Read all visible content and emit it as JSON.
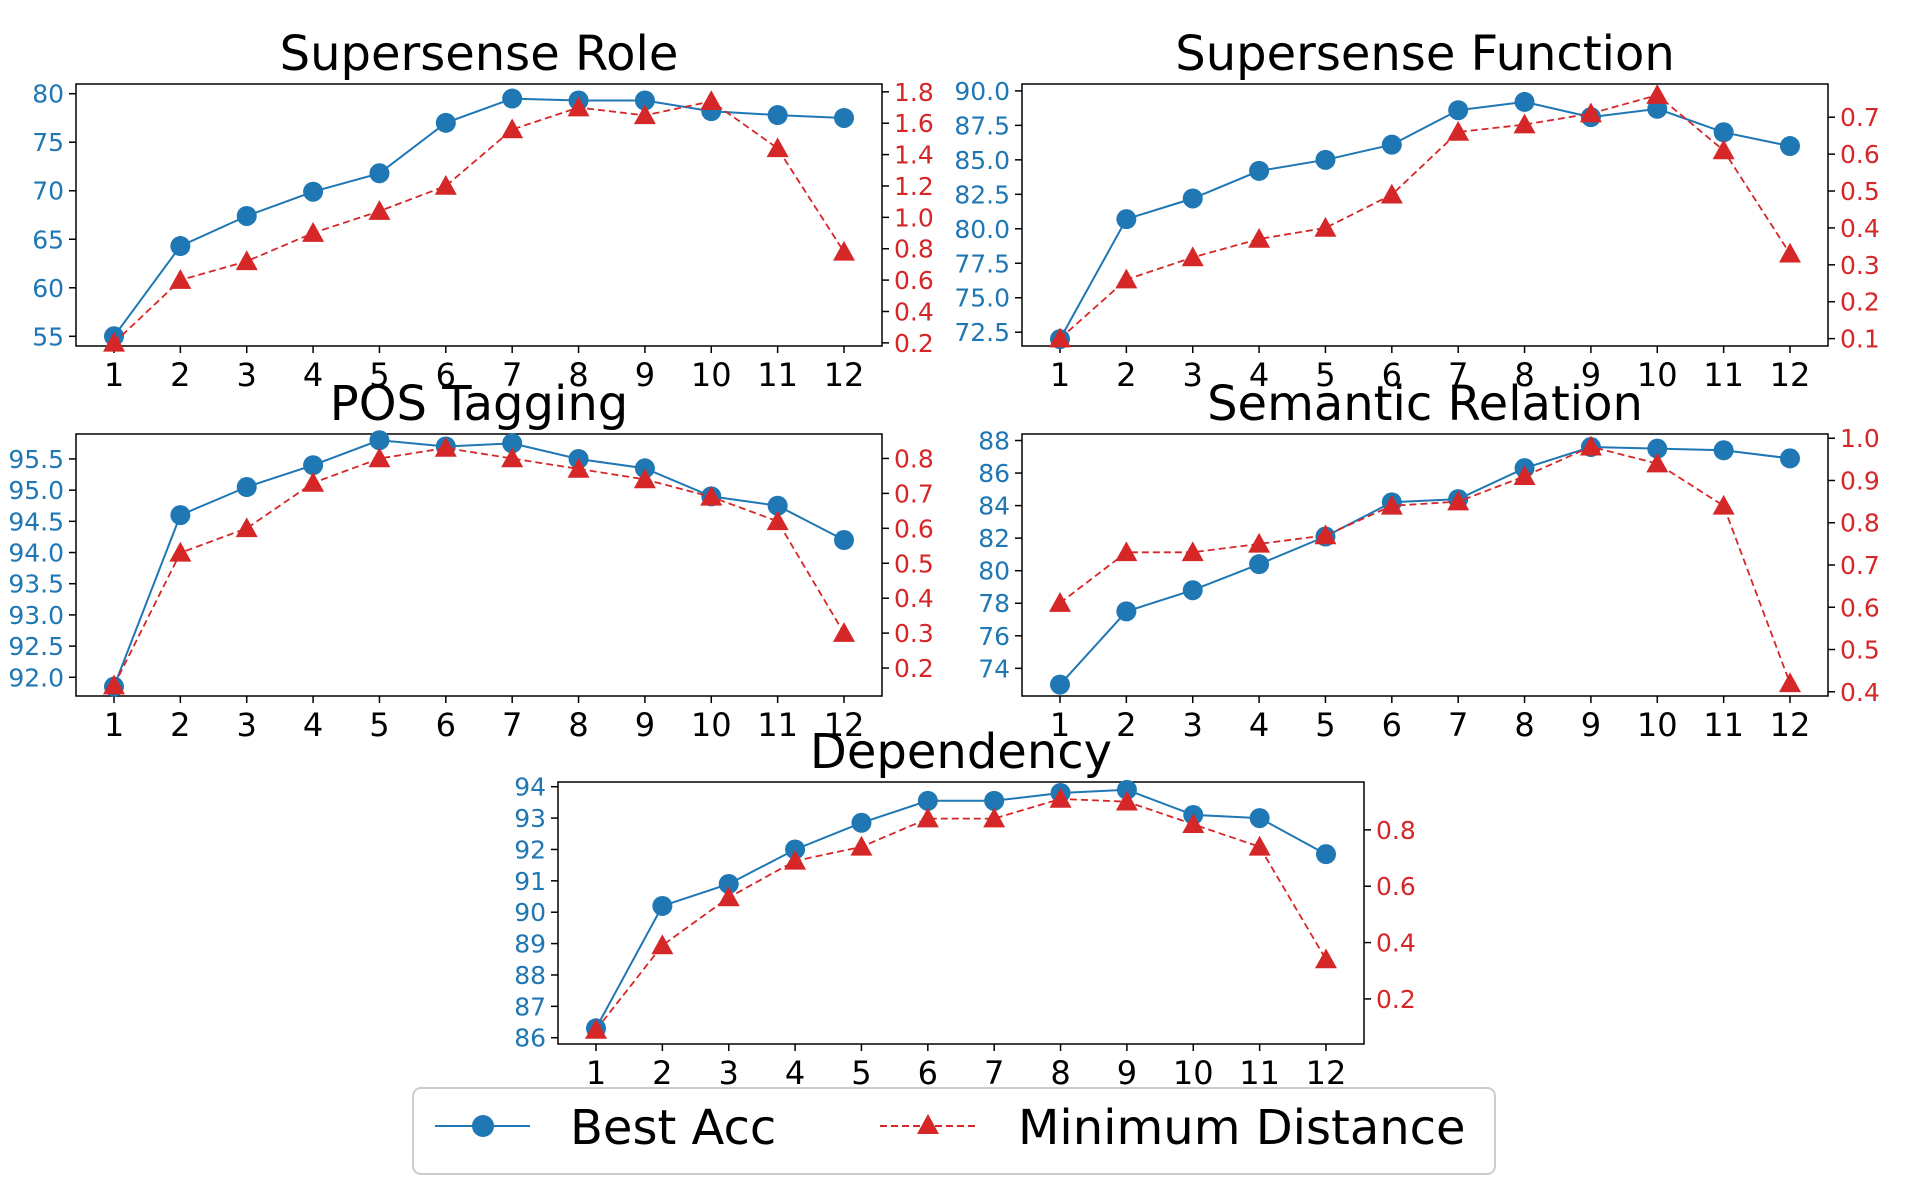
{
  "legend": {
    "best_acc_label": "Best Acc",
    "min_dist_label": "Minimum Distance"
  },
  "colors": {
    "best_acc": "#1f77b4",
    "min_dist": "#d62728",
    "axis": "#000000"
  },
  "chart_data": [
    {
      "id": "supersense-role",
      "type": "line",
      "title": "Supersense Role",
      "x": [
        1,
        2,
        3,
        4,
        5,
        6,
        7,
        8,
        9,
        10,
        11,
        12
      ],
      "xticks": [
        "1",
        "2",
        "3",
        "4",
        "5",
        "6",
        "7",
        "8",
        "9",
        "10",
        "11",
        "12"
      ],
      "ylim_left": [
        54,
        81
      ],
      "yticks_left": [
        "55",
        "60",
        "65",
        "70",
        "75",
        "80"
      ],
      "ylim_right": [
        0.18,
        1.85
      ],
      "yticks_right": [
        "0.2",
        "0.4",
        "0.6",
        "0.8",
        "1.0",
        "1.2",
        "1.4",
        "1.6",
        "1.8"
      ],
      "series": [
        {
          "name": "Best Acc",
          "axis": "left",
          "style": "solid-circle",
          "values": [
            55.0,
            64.3,
            67.4,
            69.9,
            71.8,
            77.0,
            79.5,
            79.3,
            79.3,
            78.2,
            77.8,
            77.5
          ]
        },
        {
          "name": "Minimum Distance",
          "axis": "right",
          "style": "dashed-triangle",
          "values": [
            0.2,
            0.6,
            0.72,
            0.9,
            1.04,
            1.2,
            1.56,
            1.7,
            1.65,
            1.74,
            1.44,
            0.78
          ]
        }
      ]
    },
    {
      "id": "supersense-function",
      "type": "line",
      "title": "Supersense Function",
      "x": [
        1,
        2,
        3,
        4,
        5,
        6,
        7,
        8,
        9,
        10,
        11,
        12
      ],
      "xticks": [
        "1",
        "2",
        "3",
        "4",
        "5",
        "6",
        "7",
        "8",
        "9",
        "10",
        "11",
        "12"
      ],
      "ylim_left": [
        71.5,
        90.5
      ],
      "yticks_left": [
        "72.5",
        "75.0",
        "77.5",
        "80.0",
        "82.5",
        "85.0",
        "87.5",
        "90.0"
      ],
      "ylim_right": [
        0.08,
        0.79
      ],
      "yticks_right": [
        "0.1",
        "0.2",
        "0.3",
        "0.4",
        "0.5",
        "0.6",
        "0.7"
      ],
      "series": [
        {
          "name": "Best Acc",
          "axis": "left",
          "style": "solid-circle",
          "values": [
            72.0,
            80.7,
            82.2,
            84.2,
            85.0,
            86.1,
            88.6,
            89.2,
            88.1,
            88.7,
            87.0,
            86.0
          ]
        },
        {
          "name": "Minimum Distance",
          "axis": "right",
          "style": "dashed-triangle",
          "values": [
            0.1,
            0.26,
            0.32,
            0.37,
            0.4,
            0.49,
            0.66,
            0.68,
            0.71,
            0.76,
            0.61,
            0.33
          ]
        }
      ]
    },
    {
      "id": "pos-tagging",
      "type": "line",
      "title": "POS Tagging",
      "x": [
        1,
        2,
        3,
        4,
        5,
        6,
        7,
        8,
        9,
        10,
        11,
        12
      ],
      "xticks": [
        "1",
        "2",
        "3",
        "4",
        "5",
        "6",
        "7",
        "8",
        "9",
        "10",
        "11",
        "12"
      ],
      "ylim_left": [
        91.7,
        95.9
      ],
      "yticks_left": [
        "92.0",
        "92.5",
        "93.0",
        "93.5",
        "94.0",
        "94.5",
        "95.0",
        "95.5"
      ],
      "ylim_right": [
        0.12,
        0.87
      ],
      "yticks_right": [
        "0.2",
        "0.3",
        "0.4",
        "0.5",
        "0.6",
        "0.7",
        "0.8"
      ],
      "series": [
        {
          "name": "Best Acc",
          "axis": "left",
          "style": "solid-circle",
          "values": [
            91.85,
            94.6,
            95.05,
            95.4,
            95.8,
            95.7,
            95.75,
            95.5,
            95.35,
            94.9,
            94.75,
            94.2
          ]
        },
        {
          "name": "Minimum Distance",
          "axis": "right",
          "style": "dashed-triangle",
          "values": [
            0.15,
            0.53,
            0.6,
            0.73,
            0.8,
            0.83,
            0.8,
            0.77,
            0.74,
            0.69,
            0.62,
            0.3
          ]
        }
      ]
    },
    {
      "id": "semantic-relation",
      "type": "line",
      "title": "Semantic Relation",
      "x": [
        1,
        2,
        3,
        4,
        5,
        6,
        7,
        8,
        9,
        10,
        11,
        12
      ],
      "xticks": [
        "1",
        "2",
        "3",
        "4",
        "5",
        "6",
        "7",
        "8",
        "9",
        "10",
        "11",
        "12"
      ],
      "ylim_left": [
        72.3,
        88.4
      ],
      "yticks_left": [
        "74",
        "76",
        "78",
        "80",
        "82",
        "84",
        "86",
        "88"
      ],
      "ylim_right": [
        0.39,
        1.01
      ],
      "yticks_right": [
        "0.4",
        "0.5",
        "0.6",
        "0.7",
        "0.8",
        "0.9",
        "1.0"
      ],
      "series": [
        {
          "name": "Best Acc",
          "axis": "left",
          "style": "solid-circle",
          "values": [
            73.0,
            77.5,
            78.8,
            80.4,
            82.1,
            84.2,
            84.4,
            86.3,
            87.6,
            87.5,
            87.4,
            86.9
          ]
        },
        {
          "name": "Minimum Distance",
          "axis": "right",
          "style": "dashed-triangle",
          "values": [
            0.61,
            0.73,
            0.73,
            0.75,
            0.77,
            0.84,
            0.85,
            0.91,
            0.98,
            0.94,
            0.84,
            0.42
          ]
        }
      ]
    },
    {
      "id": "dependency",
      "type": "line",
      "title": "Dependency",
      "x": [
        1,
        2,
        3,
        4,
        5,
        6,
        7,
        8,
        9,
        10,
        11,
        12
      ],
      "xticks": [
        "1",
        "2",
        "3",
        "4",
        "5",
        "6",
        "7",
        "8",
        "9",
        "10",
        "11",
        "12"
      ],
      "ylim_left": [
        85.8,
        94.15
      ],
      "yticks_left": [
        "86",
        "87",
        "88",
        "89",
        "90",
        "91",
        "92",
        "93",
        "94"
      ],
      "ylim_right": [
        0.04,
        0.97
      ],
      "yticks_right": [
        "0.2",
        "0.4",
        "0.6",
        "0.8"
      ],
      "series": [
        {
          "name": "Best Acc",
          "axis": "left",
          "style": "solid-circle",
          "values": [
            86.3,
            90.2,
            90.9,
            92.0,
            92.85,
            93.55,
            93.55,
            93.8,
            93.9,
            93.1,
            93.0,
            91.85
          ]
        },
        {
          "name": "Minimum Distance",
          "axis": "right",
          "style": "dashed-triangle",
          "values": [
            0.09,
            0.39,
            0.56,
            0.69,
            0.74,
            0.84,
            0.84,
            0.91,
            0.9,
            0.82,
            0.74,
            0.34
          ]
        }
      ]
    }
  ]
}
